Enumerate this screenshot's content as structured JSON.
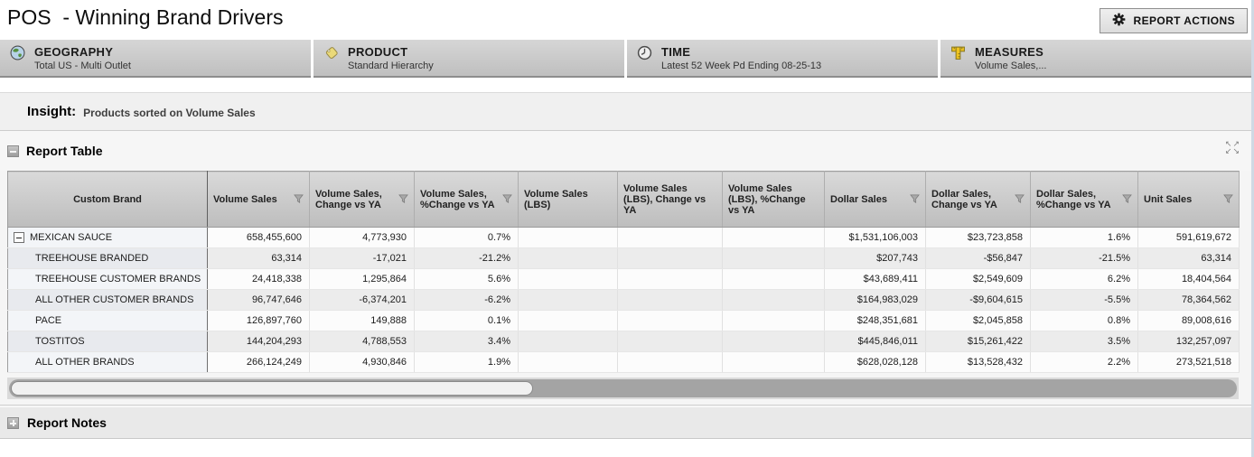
{
  "header": {
    "title": "POS  - Winning Brand Drivers",
    "report_actions_label": "REPORT ACTIONS"
  },
  "filters": [
    {
      "icon": "globe-icon",
      "label": "GEOGRAPHY",
      "value": "Total US - Multi Outlet"
    },
    {
      "icon": "tag-icon",
      "label": "PRODUCT",
      "value": "Standard Hierarchy"
    },
    {
      "icon": "clock-icon",
      "label": "TIME",
      "value": "Latest 52 Week Pd Ending 08-25-13"
    },
    {
      "icon": "ruler-icon",
      "label": "MEASURES",
      "value": "Volume Sales,..."
    }
  ],
  "insight": {
    "label": "Insight:",
    "text": "Products sorted on Volume Sales"
  },
  "report_table": {
    "section_title": "Report Table",
    "columns": [
      {
        "label": "Custom Brand",
        "filter": false
      },
      {
        "label": "Volume Sales",
        "filter": true
      },
      {
        "label": "Volume Sales, Change vs YA",
        "filter": true
      },
      {
        "label": "Volume Sales, %Change vs YA",
        "filter": true
      },
      {
        "label": "Volume Sales (LBS)",
        "filter": false
      },
      {
        "label": "Volume Sales (LBS), Change vs YA",
        "filter": false
      },
      {
        "label": "Volume Sales (LBS), %Change vs YA",
        "filter": false
      },
      {
        "label": "Dollar Sales",
        "filter": true
      },
      {
        "label": "Dollar Sales, Change vs YA",
        "filter": true
      },
      {
        "label": "Dollar Sales, %Change vs YA",
        "filter": true
      },
      {
        "label": "Unit Sales",
        "filter": true
      }
    ],
    "rows": [
      {
        "brand": "MEXICAN SAUCE",
        "expandable": true,
        "values": [
          "658,455,600",
          "4,773,930",
          "0.7%",
          "",
          "",
          "",
          "$1,531,106,003",
          "$23,723,858",
          "1.6%",
          "591,619,672"
        ]
      },
      {
        "brand": "TREEHOUSE BRANDED",
        "expandable": false,
        "values": [
          "63,314",
          "-17,021",
          "-21.2%",
          "",
          "",
          "",
          "$207,743",
          "-$56,847",
          "-21.5%",
          "63,314"
        ]
      },
      {
        "brand": "TREEHOUSE CUSTOMER BRANDS",
        "expandable": false,
        "values": [
          "24,418,338",
          "1,295,864",
          "5.6%",
          "",
          "",
          "",
          "$43,689,411",
          "$2,549,609",
          "6.2%",
          "18,404,564"
        ]
      },
      {
        "brand": "ALL OTHER CUSTOMER BRANDS",
        "expandable": false,
        "values": [
          "96,747,646",
          "-6,374,201",
          "-6.2%",
          "",
          "",
          "",
          "$164,983,029",
          "-$9,604,615",
          "-5.5%",
          "78,364,562"
        ]
      },
      {
        "brand": "PACE",
        "expandable": false,
        "values": [
          "126,897,760",
          "149,888",
          "0.1%",
          "",
          "",
          "",
          "$248,351,681",
          "$2,045,858",
          "0.8%",
          "89,008,616"
        ]
      },
      {
        "brand": "TOSTITOS",
        "expandable": false,
        "values": [
          "144,204,293",
          "4,788,553",
          "3.4%",
          "",
          "",
          "",
          "$445,846,011",
          "$15,261,422",
          "3.5%",
          "132,257,097"
        ]
      },
      {
        "brand": "ALL OTHER BRANDS",
        "expandable": false,
        "values": [
          "266,124,249",
          "4,930,846",
          "1.9%",
          "",
          "",
          "",
          "$628,028,128",
          "$13,528,432",
          "2.2%",
          "273,521,518"
        ]
      }
    ]
  },
  "report_notes": {
    "section_title": "Report Notes"
  },
  "colors": {
    "accent_yellow": "#e9c84e",
    "panel_gray": "#c9c9c9",
    "header_gray": "#bfbfbf"
  }
}
